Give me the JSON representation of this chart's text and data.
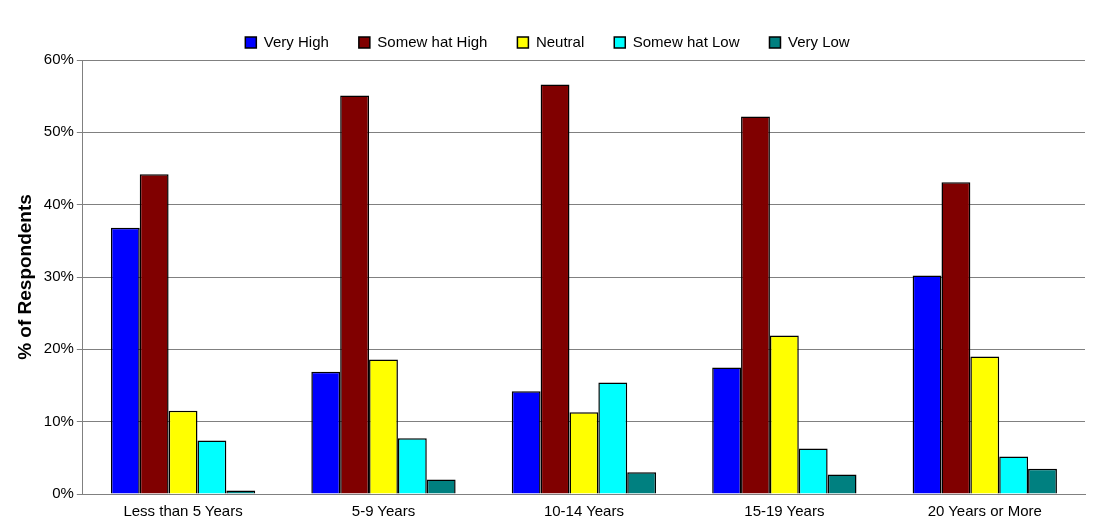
{
  "chart_data": {
    "type": "bar",
    "ylabel": "% of Respondents",
    "categories": [
      "Less than 5 Years",
      "5-9 Years",
      "10-14 Years",
      "15-19 Years",
      "20 Years or More"
    ],
    "series": [
      {
        "name": "Very High",
        "color": "#0000ff",
        "values": [
          36.8,
          16.9,
          14.2,
          17.5,
          30.2
        ]
      },
      {
        "name": "Somew hat High",
        "color": "#800000",
        "values": [
          44.2,
          55.1,
          56.6,
          52.2,
          43.1
        ]
      },
      {
        "name": "Neutral",
        "color": "#ffff00",
        "values": [
          11.5,
          18.6,
          11.3,
          21.9,
          19.0
        ]
      },
      {
        "name": "Somew hat Low",
        "color": "#00ffff",
        "values": [
          7.4,
          7.7,
          15.4,
          6.3,
          5.2
        ]
      },
      {
        "name": "Very Low",
        "color": "#008080",
        "values": [
          0.5,
          2.0,
          3.0,
          2.7,
          3.5
        ]
      }
    ],
    "ylim": [
      0,
      60
    ],
    "yticks": [
      {
        "value": 0,
        "label": "0%"
      },
      {
        "value": 10,
        "label": "10%"
      },
      {
        "value": 20,
        "label": "20%"
      },
      {
        "value": 30,
        "label": "30%"
      },
      {
        "value": 40,
        "label": "40%"
      },
      {
        "value": 50,
        "label": "50%"
      },
      {
        "value": 60,
        "label": "60%"
      }
    ],
    "grid": "y",
    "legend": "top"
  }
}
